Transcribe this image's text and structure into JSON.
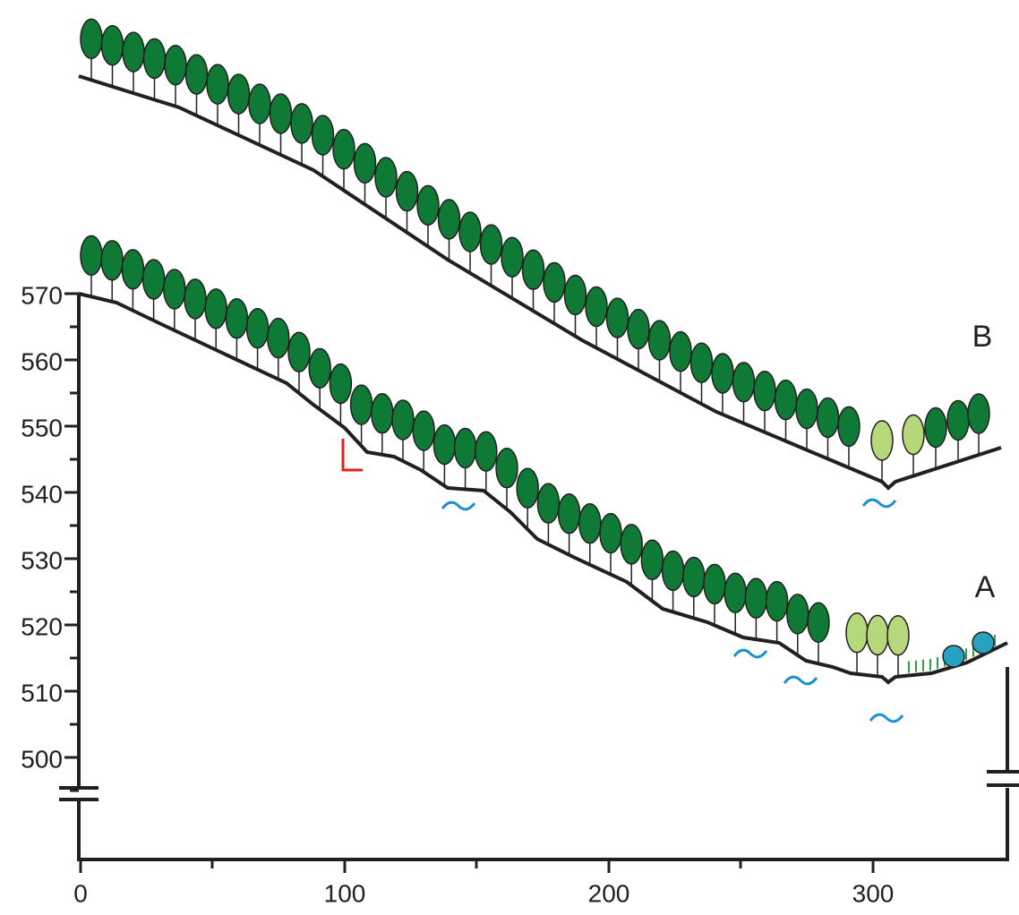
{
  "y_axis": {
    "ticks": [
      570,
      560,
      550,
      540,
      530,
      520,
      510,
      500
    ]
  },
  "x_axis": {
    "ticks": [
      0,
      100,
      200,
      300
    ]
  },
  "profiles": [
    {
      "label": "A"
    },
    {
      "label": "B"
    }
  ]
}
